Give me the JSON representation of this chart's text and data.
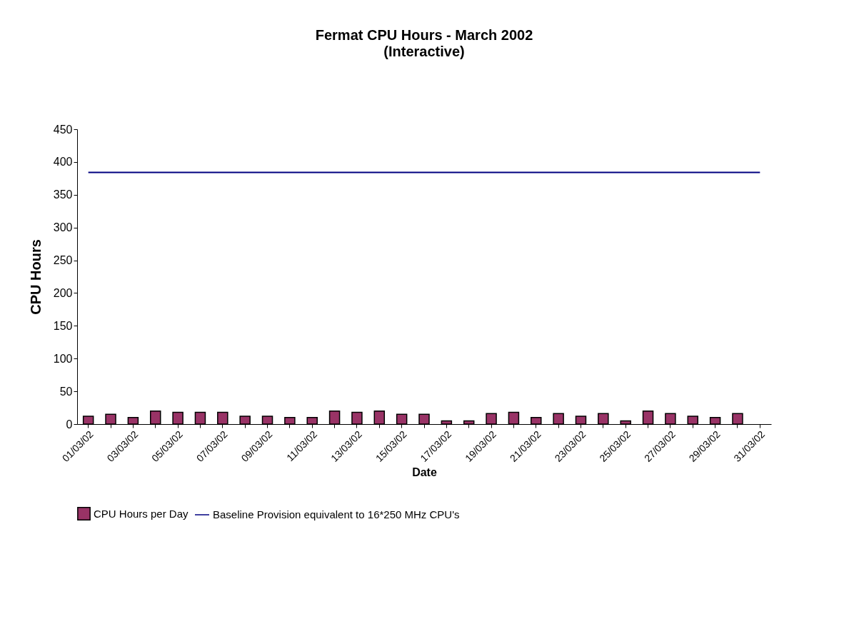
{
  "chart_data": {
    "type": "bar",
    "title": "Fermat CPU Hours - March 2002",
    "subtitle": "(Interactive)",
    "xlabel": "Date",
    "ylabel": "CPU Hours",
    "categories": [
      "01/03/02",
      null,
      "03/03/02",
      null,
      "05/03/02",
      null,
      "07/03/02",
      null,
      "09/03/02",
      null,
      "11/03/02",
      null,
      "13/03/02",
      null,
      "15/03/02",
      null,
      "17/03/02",
      null,
      "19/03/02",
      null,
      "21/03/02",
      null,
      "23/03/02",
      null,
      "25/03/02",
      null,
      "27/03/02",
      null,
      "29/03/02",
      null,
      "31/03/02"
    ],
    "series": [
      {
        "name": "CPU Hours per Day",
        "color": "#993366",
        "values": [
          12,
          15,
          10,
          20,
          18,
          18,
          18,
          12,
          12,
          10,
          10,
          20,
          18,
          20,
          15,
          15,
          5,
          5,
          16,
          18,
          10,
          16,
          12,
          16,
          5,
          20,
          16,
          12,
          10,
          16,
          null
        ]
      },
      {
        "name": "Baseline Provision equivalent to 16*250 MHz CPU's",
        "type": "line",
        "color": "#000080",
        "values": [
          384,
          384,
          384,
          384,
          384,
          384,
          384,
          384,
          384,
          384,
          384,
          384,
          384,
          384,
          384,
          384,
          384,
          384,
          384,
          384,
          384,
          384,
          384,
          384,
          384,
          384,
          384,
          384,
          384,
          384,
          384
        ]
      }
    ],
    "ylim": [
      0,
      450
    ],
    "yticks": [
      0,
      50,
      100,
      150,
      200,
      250,
      300,
      350,
      400,
      450
    ],
    "grid": false,
    "legend": "bottom"
  }
}
